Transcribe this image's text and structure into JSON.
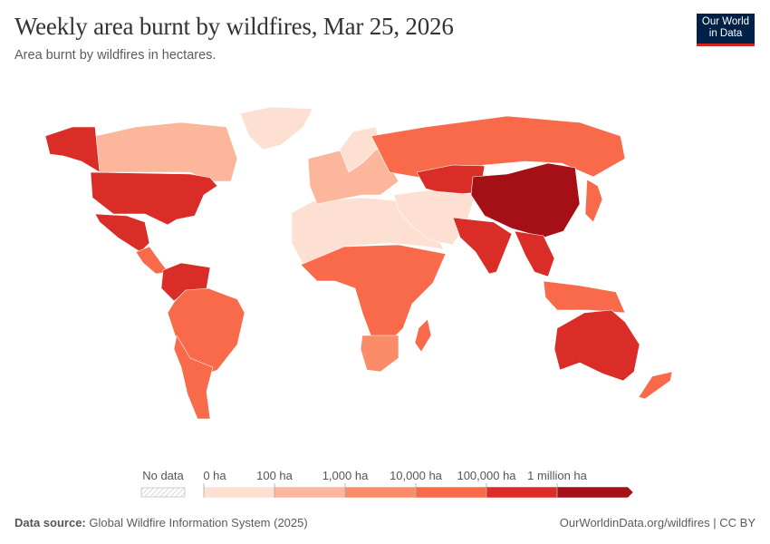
{
  "header": {
    "title": "Weekly area burnt by wildfires, Mar 25, 2026",
    "subtitle": "Area burnt by wildfires in hectares.",
    "logo": "Our World in Data"
  },
  "legend": {
    "no_data_label": "No data",
    "bins": [
      "0 ha",
      "100 ha",
      "1,000 ha",
      "10,000 ha",
      "100,000 ha",
      "1 million ha"
    ],
    "colors": [
      "#fde0d2",
      "#fbb69b",
      "#fb8c6a",
      "#f96a4a",
      "#db2d27",
      "#a51016"
    ]
  },
  "map": {
    "regions": [
      {
        "name": "greenland",
        "bin": 0
      },
      {
        "name": "canada",
        "bin": 1
      },
      {
        "name": "alaska",
        "bin": 4
      },
      {
        "name": "united-states",
        "bin": 4
      },
      {
        "name": "mexico",
        "bin": 4
      },
      {
        "name": "central-america",
        "bin": 3
      },
      {
        "name": "venezuela-colombia",
        "bin": 4
      },
      {
        "name": "brazil",
        "bin": 3
      },
      {
        "name": "southern-cone",
        "bin": 3
      },
      {
        "name": "north-africa",
        "bin": 0
      },
      {
        "name": "sub-saharan-africa",
        "bin": 3
      },
      {
        "name": "southern-africa",
        "bin": 2
      },
      {
        "name": "madagascar",
        "bin": 3
      },
      {
        "name": "europe",
        "bin": 1
      },
      {
        "name": "scandinavia",
        "bin": 0
      },
      {
        "name": "russia",
        "bin": 3
      },
      {
        "name": "kazakhstan",
        "bin": 4
      },
      {
        "name": "middle-east",
        "bin": 0
      },
      {
        "name": "china",
        "bin": 5
      },
      {
        "name": "india",
        "bin": 4
      },
      {
        "name": "southeast-asia",
        "bin": 4
      },
      {
        "name": "indonesia",
        "bin": 3
      },
      {
        "name": "japan",
        "bin": 3
      },
      {
        "name": "australia",
        "bin": 4
      },
      {
        "name": "new-zealand",
        "bin": 3
      }
    ]
  },
  "footer": {
    "source_label": "Data source:",
    "source": "Global Wildfire Information System (2025)",
    "link": "OurWorldinData.org/wildfires | CC BY"
  }
}
